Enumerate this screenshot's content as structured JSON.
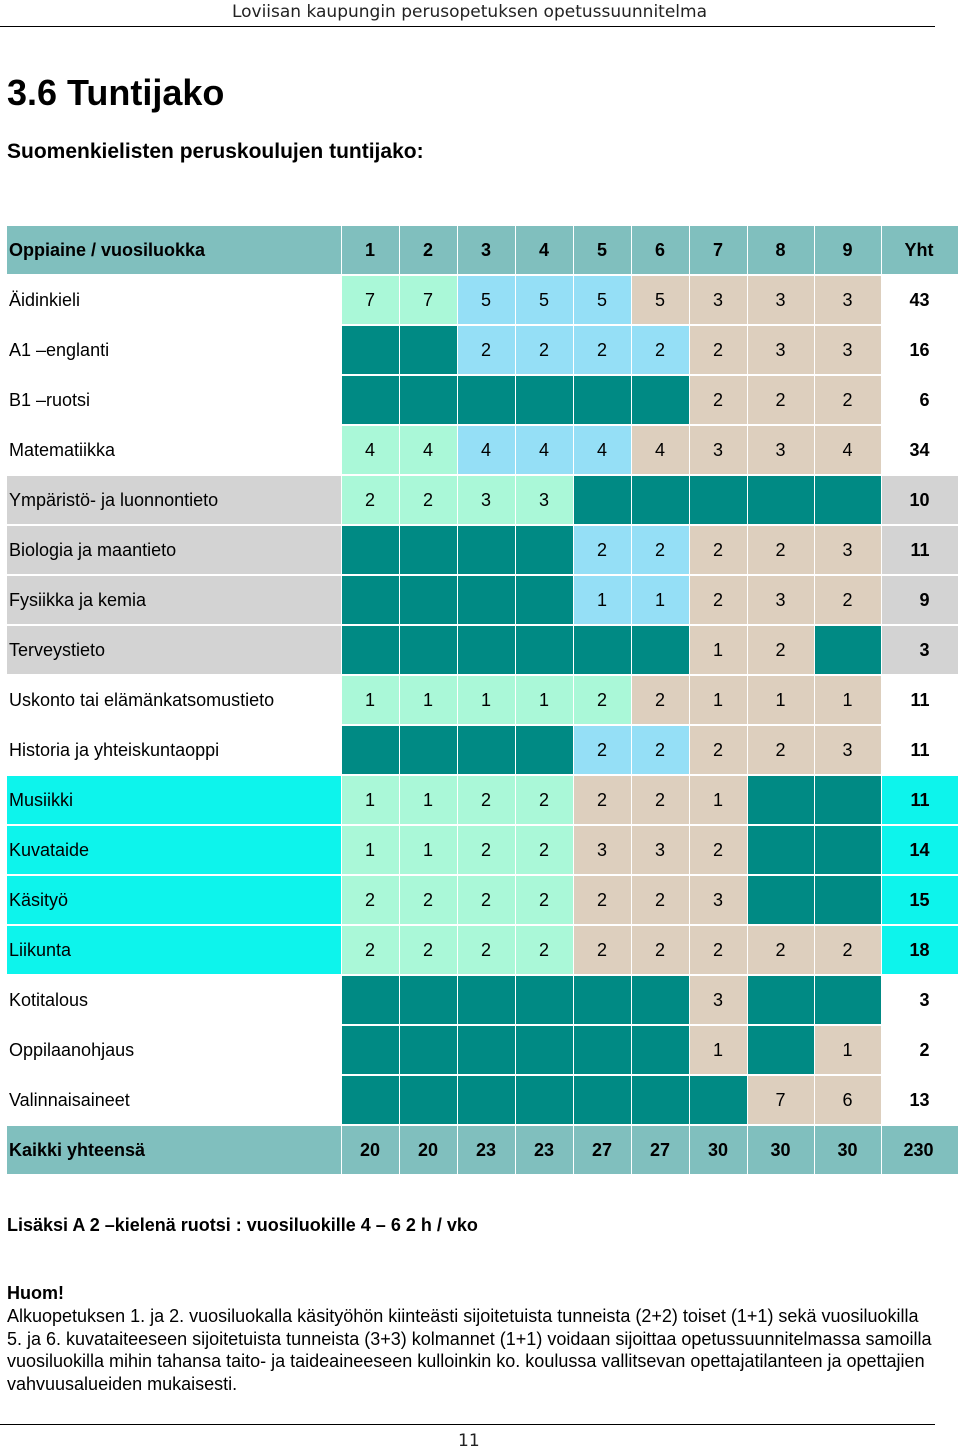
{
  "header": {
    "title": "Loviisan kaupungin perusopetuksen opetussuunnitelma"
  },
  "section": {
    "title": "3.6  Tuntijako",
    "subtitle": "Suomenkielisten peruskoulujen tuntijako:"
  },
  "colors": {
    "header_bg": "#80bfbe",
    "dark_teal": "#008a84",
    "mint": "#aaf8d8",
    "light_blue": "#95dff6",
    "beige": "#ddcfbe",
    "light_gray": "#d3d3d3",
    "cyan": "#0df4ec",
    "white": "#ffffff"
  },
  "table": {
    "header": [
      "Oppiaine / vuosiluokka",
      "1",
      "2",
      "3",
      "4",
      "5",
      "6",
      "7",
      "8",
      "9",
      "Yht"
    ],
    "rows": [
      {
        "name": "Äidinkieli",
        "cells": [
          "7",
          "7",
          "5",
          "5",
          "5",
          "5",
          "3",
          "3",
          "3"
        ],
        "total": "43",
        "bg": "#ffffff",
        "fills": [
          "mint",
          "mint",
          "light_blue",
          "light_blue",
          "light_blue",
          "beige",
          "beige",
          "beige",
          "beige"
        ]
      },
      {
        "name": "A1 –englanti",
        "cells": [
          "",
          "",
          "2",
          "2",
          "2",
          "2",
          "2",
          "3",
          "3"
        ],
        "total": "16",
        "bg": "#ffffff",
        "fills": [
          "dark_teal",
          "dark_teal",
          "light_blue",
          "light_blue",
          "light_blue",
          "light_blue",
          "beige",
          "beige",
          "beige"
        ]
      },
      {
        "name": "B1 –ruotsi",
        "cells": [
          "",
          "",
          "",
          "",
          "",
          "",
          "2",
          "2",
          "2"
        ],
        "total": "6",
        "bg": "#ffffff",
        "fills": [
          "dark_teal",
          "dark_teal",
          "dark_teal",
          "dark_teal",
          "dark_teal",
          "dark_teal",
          "beige",
          "beige",
          "beige"
        ]
      },
      {
        "name": "Matematiikka",
        "cells": [
          "4",
          "4",
          "4",
          "4",
          "4",
          "4",
          "3",
          "3",
          "4"
        ],
        "total": "34",
        "bg": "#ffffff",
        "fills": [
          "mint",
          "mint",
          "light_blue",
          "light_blue",
          "light_blue",
          "beige",
          "beige",
          "beige",
          "beige"
        ]
      },
      {
        "name": "Ympäristö- ja luonnontieto",
        "cells": [
          "2",
          "2",
          "3",
          "3",
          "",
          "",
          "",
          "",
          ""
        ],
        "total": "10",
        "bg": "#d3d3d3",
        "fills": [
          "mint",
          "mint",
          "mint",
          "mint",
          "dark_teal",
          "dark_teal",
          "dark_teal",
          "dark_teal",
          "dark_teal"
        ]
      },
      {
        "name": "Biologia ja maantieto",
        "cells": [
          "",
          "",
          "",
          "",
          "2",
          "2",
          "2",
          "2",
          "3"
        ],
        "total": "11",
        "bg": "#d3d3d3",
        "fills": [
          "dark_teal",
          "dark_teal",
          "dark_teal",
          "dark_teal",
          "light_blue",
          "light_blue",
          "beige",
          "beige",
          "beige"
        ]
      },
      {
        "name": "Fysiikka ja kemia",
        "cells": [
          "",
          "",
          "",
          "",
          "1",
          "1",
          "2",
          "3",
          "2"
        ],
        "total": "9",
        "bg": "#d3d3d3",
        "fills": [
          "dark_teal",
          "dark_teal",
          "dark_teal",
          "dark_teal",
          "light_blue",
          "light_blue",
          "beige",
          "beige",
          "beige"
        ]
      },
      {
        "name": "Terveystieto",
        "cells": [
          "",
          "",
          "",
          "",
          "",
          "",
          "1",
          "2",
          ""
        ],
        "total": "3",
        "bg": "#d3d3d3",
        "fills": [
          "dark_teal",
          "dark_teal",
          "dark_teal",
          "dark_teal",
          "dark_teal",
          "dark_teal",
          "beige",
          "beige",
          "dark_teal"
        ]
      },
      {
        "name": "Uskonto tai elämänkatsomustieto",
        "cells": [
          "1",
          "1",
          "1",
          "1",
          "2",
          "2",
          "1",
          "1",
          "1"
        ],
        "total": "11",
        "bg": "#ffffff",
        "fills": [
          "mint",
          "mint",
          "mint",
          "mint",
          "mint",
          "beige",
          "beige",
          "beige",
          "beige"
        ]
      },
      {
        "name": "Historia ja yhteiskuntaoppi",
        "cells": [
          "",
          "",
          "",
          "",
          "2",
          "2",
          "2",
          "2",
          "3"
        ],
        "total": "11",
        "bg": "#ffffff",
        "fills": [
          "dark_teal",
          "dark_teal",
          "dark_teal",
          "dark_teal",
          "light_blue",
          "light_blue",
          "beige",
          "beige",
          "beige"
        ]
      },
      {
        "name": "Musiikki",
        "cells": [
          "1",
          "1",
          "2",
          "2",
          "2",
          "2",
          "1",
          "",
          ""
        ],
        "total": "11",
        "bg": "#0df4ec",
        "fills": [
          "mint",
          "mint",
          "mint",
          "mint",
          "beige",
          "beige",
          "beige",
          "dark_teal",
          "dark_teal"
        ]
      },
      {
        "name": "Kuvataide",
        "cells": [
          "1",
          "1",
          "2",
          "2",
          "3",
          "3",
          "2",
          "",
          ""
        ],
        "total": "14",
        "bg": "#0df4ec",
        "fills": [
          "mint",
          "mint",
          "mint",
          "mint",
          "beige",
          "beige",
          "beige",
          "dark_teal",
          "dark_teal"
        ]
      },
      {
        "name": "Käsityö",
        "cells": [
          "2",
          "2",
          "2",
          "2",
          "2",
          "2",
          "3",
          "",
          ""
        ],
        "total": "15",
        "bg": "#0df4ec",
        "fills": [
          "mint",
          "mint",
          "mint",
          "mint",
          "beige",
          "beige",
          "beige",
          "dark_teal",
          "dark_teal"
        ]
      },
      {
        "name": "Liikunta",
        "cells": [
          "2",
          "2",
          "2",
          "2",
          "2",
          "2",
          "2",
          "2",
          "2"
        ],
        "total": "18",
        "bg": "#0df4ec",
        "fills": [
          "mint",
          "mint",
          "mint",
          "mint",
          "beige",
          "beige",
          "beige",
          "beige",
          "beige"
        ]
      },
      {
        "name": "Kotitalous",
        "cells": [
          "",
          "",
          "",
          "",
          "",
          "",
          "3",
          "",
          ""
        ],
        "total": "3",
        "bg": "#ffffff",
        "fills": [
          "dark_teal",
          "dark_teal",
          "dark_teal",
          "dark_teal",
          "dark_teal",
          "dark_teal",
          "beige",
          "dark_teal",
          "dark_teal"
        ]
      },
      {
        "name": "Oppilaanohjaus",
        "cells": [
          "",
          "",
          "",
          "",
          "",
          "",
          "1",
          "",
          "1"
        ],
        "total": "2",
        "bg": "#ffffff",
        "fills": [
          "dark_teal",
          "dark_teal",
          "dark_teal",
          "dark_teal",
          "dark_teal",
          "dark_teal",
          "beige",
          "dark_teal",
          "beige"
        ]
      },
      {
        "name": "Valinnaisaineet",
        "cells": [
          "",
          "",
          "",
          "",
          "",
          "",
          "",
          "7",
          "6"
        ],
        "total": "13",
        "bg": "#ffffff",
        "fills": [
          "dark_teal",
          "dark_teal",
          "dark_teal",
          "dark_teal",
          "dark_teal",
          "dark_teal",
          "dark_teal",
          "beige",
          "beige"
        ]
      }
    ],
    "total_row": {
      "name": "Kaikki yhteensä",
      "cells": [
        "20",
        "20",
        "23",
        "23",
        "27",
        "27",
        "30",
        "30",
        "30"
      ],
      "total": "230"
    }
  },
  "notes": {
    "lisaksi": "Lisäksi A 2 –kielenä ruotsi : vuosiluokille 4 – 6 2 h / vko",
    "huom_label": "Huom!",
    "huom_text": "Alkuopetuksen 1. ja 2. vuosiluokalla käsityöhön kiinteästi sijoitetuista tunneista (2+2) toiset (1+1) sekä vuosiluokilla 5. ja 6. kuvataiteeseen sijoitetuista tunneista (3+3) kolmannet (1+1) voidaan sijoittaa opetussuunnitelmassa samoilla vuosiluokilla mihin tahansa taito- ja taideaineeseen kulloinkin ko. koulussa vallitsevan opettajatilanteen ja opettajien vahvuusalueiden mukaisesti."
  },
  "footer": {
    "page_number": "11"
  }
}
